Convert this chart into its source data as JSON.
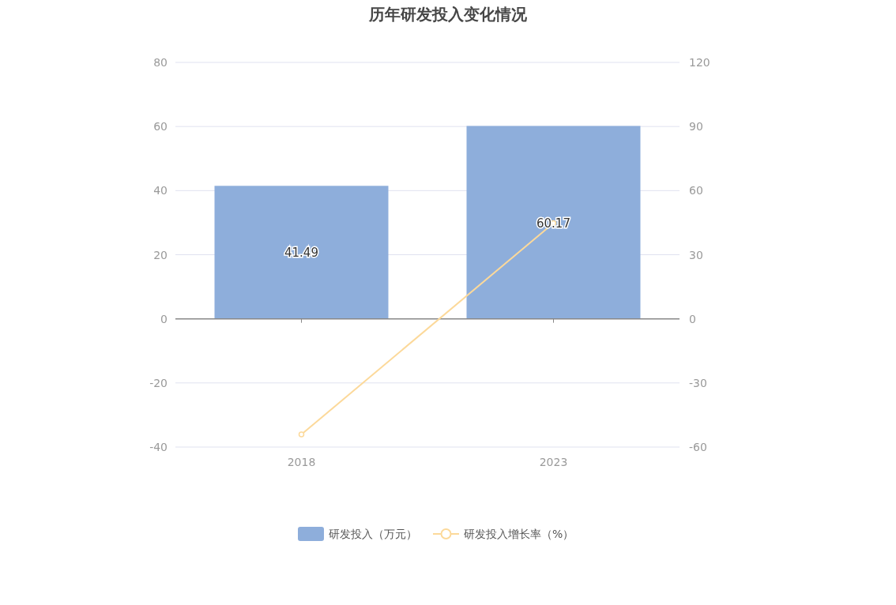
{
  "chart_data": {
    "type": "bar",
    "title": "历年研发投入变化情况",
    "categories": [
      "2018",
      "2023"
    ],
    "series": [
      {
        "name": "研发投入（万元）",
        "color": "#8eaedb",
        "values": [
          41.49,
          60.17
        ],
        "value_labels": [
          "41.49",
          "60.17"
        ]
      },
      {
        "name": "研发投入增长率（%）",
        "type": "line",
        "axis": "y2",
        "color": "#fcd99a",
        "marker": "circle",
        "values": [
          -54.1,
          44.8
        ]
      }
    ],
    "ylim": [
      -40,
      80
    ],
    "yticks": [
      -40,
      -20,
      0,
      20,
      40,
      60,
      80
    ],
    "y2lim": [
      -60,
      120
    ],
    "y2ticks": [
      -60,
      -30,
      0,
      30,
      60,
      90,
      120
    ],
    "grid": "y",
    "legend": "bottom"
  }
}
